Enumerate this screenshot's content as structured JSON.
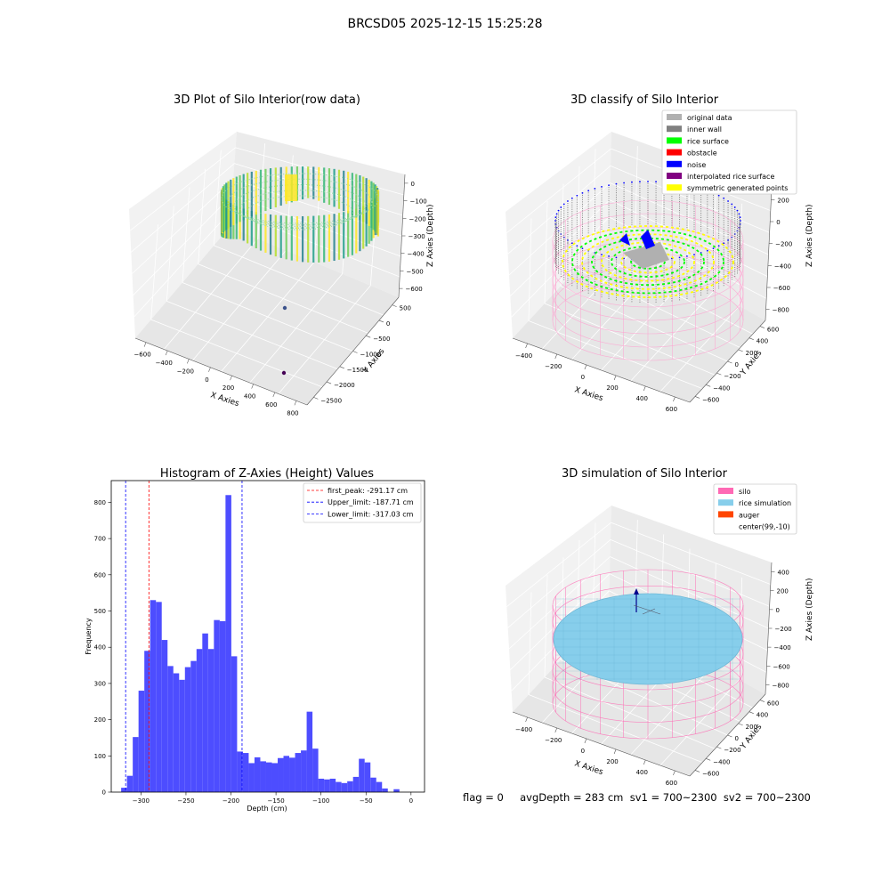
{
  "suptitle": "BRCSD05 2025-12-15 15:25:28",
  "panel_raw": {
    "title": "3D Plot of Silo Interior(row data)",
    "x_label": "X Axies",
    "y_label": "Y Axies",
    "z_label": "Z Axies (Depth)",
    "x_ticks": [
      "−600",
      "−400",
      "−200",
      "0",
      "200",
      "400",
      "600",
      "800"
    ],
    "y_ticks": [
      "500",
      "0",
      "−500",
      "−1000",
      "−1500",
      "−2000",
      "−2500"
    ],
    "z_ticks": [
      "0",
      "−100",
      "−200",
      "−300",
      "−400",
      "−500",
      "−600"
    ]
  },
  "panel_classify": {
    "title": "3D classify of Silo Interior",
    "x_label": "X Axies",
    "y_label": "Y Axies",
    "z_label": "Z Axies (Depth)",
    "x_ticks": [
      "−400",
      "−200",
      "0",
      "200",
      "400",
      "600"
    ],
    "y_ticks": [
      "600",
      "400",
      "200",
      "0",
      "−200",
      "−400",
      "−600"
    ],
    "z_ticks": [
      "200",
      "0",
      "−200",
      "−400",
      "−600",
      "−800"
    ],
    "legend": [
      {
        "label": "original data",
        "color": "#b0b0b0"
      },
      {
        "label": "inner wall",
        "color": "#808080"
      },
      {
        "label": "rice surface",
        "color": "#00ff00"
      },
      {
        "label": "obstacle",
        "color": "#ff0000"
      },
      {
        "label": "noise",
        "color": "#0000ff"
      },
      {
        "label": "interpolated rice surface",
        "color": "#800080"
      },
      {
        "label": "symmetric generated points",
        "color": "#ffff00"
      }
    ]
  },
  "panel_sim": {
    "title": "3D simulation of Silo Interior",
    "x_label": "X Axies",
    "y_label": "Y Axies",
    "z_label": "Z Axies (Depth)",
    "x_ticks": [
      "−400",
      "−200",
      "0",
      "200",
      "400",
      "600"
    ],
    "y_ticks": [
      "600",
      "400",
      "200",
      "0",
      "−200",
      "−400",
      "−600"
    ],
    "z_ticks": [
      "400",
      "200",
      "0",
      "−200",
      "−400",
      "−600",
      "−800"
    ],
    "legend": [
      {
        "label": "silo",
        "color": "#ff69b4"
      },
      {
        "label": "rice simulation",
        "color": "#87ceeb"
      },
      {
        "label": "auger",
        "color": "#ff4500"
      },
      {
        "label": "center(99,-10)",
        "color": "#ffffff"
      }
    ],
    "status": "flag = 0     avgDepth = 283 cm  sv1 = 700~2300  sv2 = 700~2300"
  },
  "chart_data": [
    {
      "type": "bar",
      "title": "Histogram of Z-Axies (Height) Values",
      "xlabel": "Depth (cm)",
      "ylabel": "Frequency",
      "xlim": [
        -333,
        15
      ],
      "ylim": [
        0,
        860
      ],
      "x_ticks": [
        "−300",
        "−250",
        "−200",
        "−150",
        "−100",
        "−50",
        "0"
      ],
      "x_tick_values": [
        -300,
        -250,
        -200,
        -150,
        -100,
        -50,
        0
      ],
      "y_ticks": [
        "0",
        "100",
        "200",
        "300",
        "400",
        "500",
        "600",
        "700",
        "800"
      ],
      "y_tick_values": [
        0,
        100,
        200,
        300,
        400,
        500,
        600,
        700,
        800
      ],
      "bar_color": "#4d4dff",
      "bin_start": -322,
      "bin_width": 6.44,
      "values": [
        12,
        45,
        152,
        280,
        390,
        530,
        525,
        420,
        348,
        328,
        310,
        345,
        362,
        395,
        438,
        395,
        475,
        472,
        820,
        375,
        112,
        108,
        80,
        96,
        85,
        82,
        80,
        94,
        100,
        95,
        108,
        115,
        222,
        120,
        37,
        35,
        37,
        28,
        25,
        30,
        42,
        92,
        82,
        40,
        28,
        10,
        0,
        8
      ],
      "vlines": [
        {
          "label": "first_peak: -291.17 cm",
          "x": -291.17,
          "color": "#ff0000"
        },
        {
          "label": "Upper_limit: -187.71 cm",
          "x": -187.71,
          "color": "#0000ff"
        },
        {
          "label": "Lower_limit: -317.03 cm",
          "x": -317.03,
          "color": "#0000ff"
        }
      ],
      "legend_position": "upper right",
      "grid": false
    }
  ]
}
